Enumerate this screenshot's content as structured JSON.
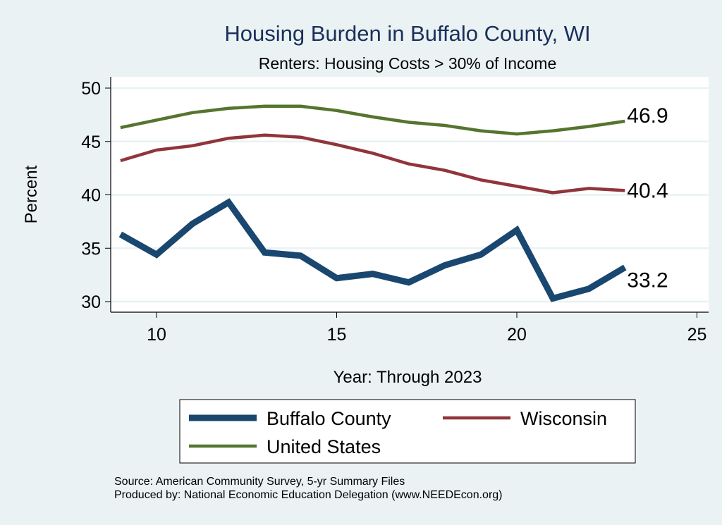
{
  "chart_data": {
    "type": "line",
    "title": "Housing Burden in Buffalo County, WI",
    "subtitle": "Renters: Housing Costs > 30% of Income",
    "xlabel": "Year: Through 2023",
    "ylabel": "Percent",
    "xlim": [
      8.3,
      25.4
    ],
    "ylim": [
      28.9,
      51.2
    ],
    "xticks": [
      10,
      15,
      20,
      25
    ],
    "yticks": [
      30,
      35,
      40,
      45,
      50
    ],
    "grid": true,
    "x": [
      9,
      10,
      11,
      12,
      13,
      14,
      15,
      16,
      17,
      18,
      19,
      20,
      21,
      22,
      23
    ],
    "series": [
      {
        "name": "Buffalo County",
        "color": "#1a476f",
        "width": 9,
        "end_label": "33.2",
        "values": [
          36.3,
          34.4,
          37.3,
          39.3,
          34.6,
          34.3,
          32.2,
          32.6,
          31.8,
          33.4,
          34.4,
          36.7,
          30.3,
          31.2,
          33.2
        ]
      },
      {
        "name": "Wisconsin",
        "color": "#90353b",
        "width": 4.5,
        "end_label": "40.4",
        "values": [
          43.2,
          44.2,
          44.6,
          45.3,
          45.6,
          45.4,
          44.7,
          43.9,
          42.9,
          42.3,
          41.4,
          40.8,
          40.2,
          40.6,
          40.4
        ]
      },
      {
        "name": "United States",
        "color": "#55752f",
        "width": 4.5,
        "end_label": "46.9",
        "values": [
          46.3,
          47.0,
          47.7,
          48.1,
          48.3,
          48.3,
          47.9,
          47.3,
          46.8,
          46.5,
          46.0,
          45.7,
          46.0,
          46.4,
          46.9
        ]
      }
    ],
    "legend_position": "bottom",
    "notes": [
      "Source: American Community Survey, 5-yr Summary Files",
      "Produced by: National Economic Education Delegation (www.NEEDEcon.org)"
    ]
  }
}
